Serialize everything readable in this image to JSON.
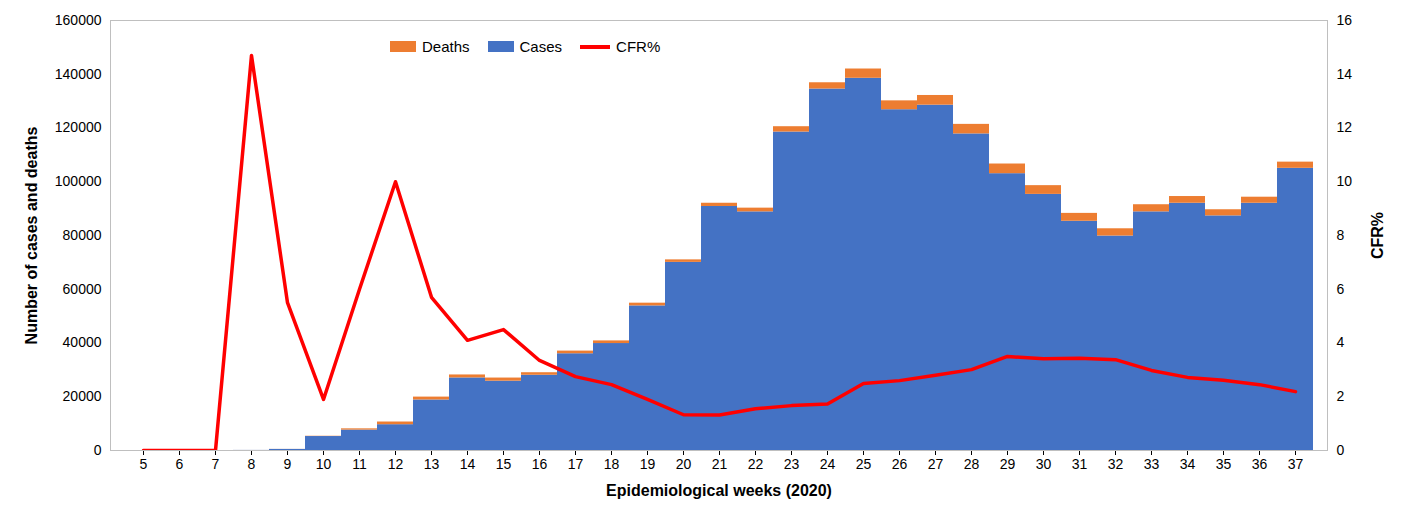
{
  "chart_data": {
    "type": "bar",
    "stacked": true,
    "x_label": "Epidemiological weeks (2020)",
    "y_label": "Number of cases and deaths",
    "y2_label": "CFR%",
    "categories": [
      5,
      6,
      7,
      8,
      9,
      10,
      11,
      12,
      13,
      14,
      15,
      16,
      17,
      18,
      19,
      20,
      21,
      22,
      23,
      24,
      25,
      26,
      27,
      28,
      29,
      30,
      31,
      32,
      33,
      34,
      35,
      36,
      37
    ],
    "ylim": [
      0,
      160000
    ],
    "yticks": [
      0,
      20000,
      40000,
      60000,
      80000,
      100000,
      120000,
      140000,
      160000
    ],
    "y2lim": [
      0,
      16
    ],
    "y2ticks": [
      0,
      2,
      4,
      6,
      8,
      10,
      12,
      14,
      16
    ],
    "grid": false,
    "legend": "top",
    "series": [
      {
        "name": "Deaths",
        "type": "bar",
        "color": "#ed7d31",
        "values": [
          0,
          0,
          0,
          5,
          22,
          100,
          460,
          1000,
          1070,
          1110,
          1160,
          940,
          990,
          980,
          1020,
          930,
          1200,
          1380,
          1980,
          2330,
          3450,
          3300,
          3600,
          3550,
          3600,
          3250,
          2930,
          2700,
          2650,
          2500,
          2280,
          2250,
          2300
        ]
      },
      {
        "name": "Cases",
        "type": "bar",
        "color": "#4472c4",
        "values": [
          0,
          0,
          0,
          34,
          400,
          5200,
          7600,
          9600,
          18800,
          27000,
          25800,
          28000,
          36000,
          39800,
          53800,
          70000,
          90800,
          88800,
          118500,
          134500,
          138500,
          126800,
          128500,
          117800,
          103000,
          95300,
          85300,
          79800,
          88800,
          92000,
          87300,
          92000,
          105000
        ]
      },
      {
        "name": "CFR%",
        "type": "line",
        "axis": "y2",
        "color": "#ff0000",
        "values": [
          0,
          0,
          0,
          14.7,
          5.5,
          1.9,
          6,
          10,
          5.7,
          4.1,
          4.5,
          3.35,
          2.75,
          2.45,
          1.9,
          1.33,
          1.32,
          1.55,
          1.67,
          1.73,
          2.49,
          2.6,
          2.8,
          3.01,
          3.5,
          3.41,
          3.43,
          3.38,
          2.98,
          2.72,
          2.61,
          2.45,
          2.19
        ]
      }
    ]
  }
}
